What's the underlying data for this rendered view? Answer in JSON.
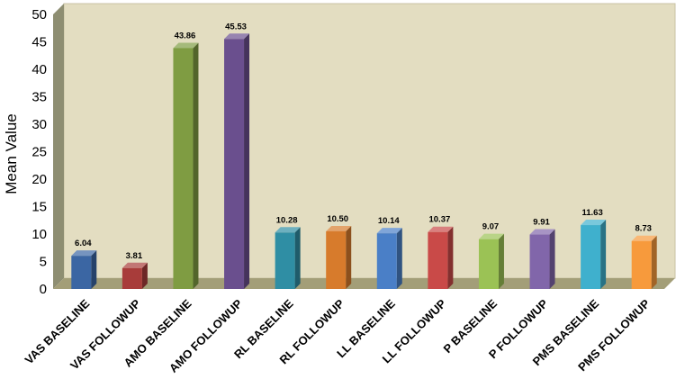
{
  "chart_data": {
    "type": "bar",
    "title": "",
    "xlabel": "",
    "ylabel": "Mean Value",
    "ylim": [
      0,
      50
    ],
    "yticks": [
      0,
      5,
      10,
      15,
      20,
      25,
      30,
      35,
      40,
      45,
      50
    ],
    "grid": false,
    "style": "3d-bar",
    "categories": [
      "VAS BASELINE",
      "VAS FOLLOWUP",
      "AMO BASELINE",
      "AMO FOLLOWUP",
      "RL BASELINE",
      "RL FOLLOWUP",
      "LL BASELINE",
      "LL FOLLOWUP",
      "P BASELINE",
      "P FOLLOWUP",
      "PMS BASELINE",
      "PMS FOLLOWUP"
    ],
    "values": [
      6.04,
      3.81,
      43.86,
      45.53,
      10.28,
      10.5,
      10.14,
      10.37,
      9.07,
      9.91,
      11.63,
      8.73
    ],
    "data_labels": [
      "6.04",
      "3.81",
      "43.86",
      "45.53",
      "10.28",
      "10.50",
      "10.14",
      "10.37",
      "9.07",
      "9.91",
      "11.63",
      "8.73"
    ],
    "colors": [
      "#3b66a3",
      "#a83c3a",
      "#7f9c42",
      "#6a4f8e",
      "#2f8ea4",
      "#d77b2c",
      "#4a7fc7",
      "#c94a48",
      "#9bc255",
      "#8166aa",
      "#3fb0cd",
      "#f79a3c"
    ],
    "background": {
      "plot_wall": "#e3ddc1",
      "side_wall": "#8e8e72",
      "floor": "#a39e78"
    }
  }
}
